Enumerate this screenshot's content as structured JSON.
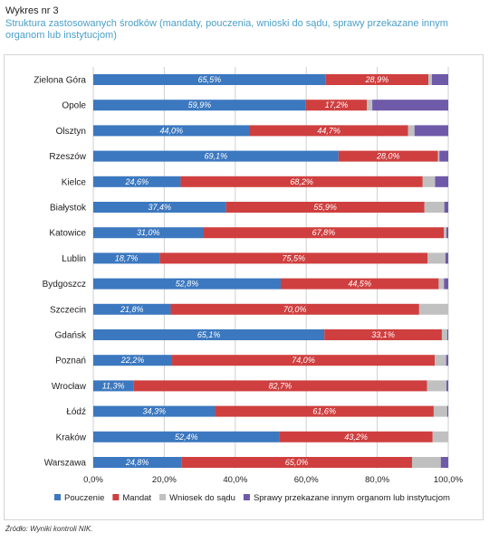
{
  "figure": {
    "label": "Wykres nr 3",
    "title": "Struktura zastosowanych środków (mandaty, pouczenia, wnioski do sądu, sprawy przekazane innym organom lub instytucjom)",
    "source": "Źródło: Wyniki kontroli NIK."
  },
  "colors": {
    "pouczenie": "#3c78bf",
    "mandat": "#cf3f3f",
    "wniosek": "#c0c0c0",
    "sprawy": "#6e5aa8",
    "grid": "#cfcfcf"
  },
  "chart_data": {
    "type": "bar",
    "orientation": "horizontal",
    "stacked": true,
    "categories": [
      "Zielona Góra",
      "Opole",
      "Olsztyn",
      "Rzeszów",
      "Kielce",
      "Białystok",
      "Katowice",
      "Lublin",
      "Bydgoszcz",
      "Szczecin",
      "Gdańsk",
      "Poznań",
      "Wrocław",
      "Łódź",
      "Kraków",
      "Warszawa"
    ],
    "series": [
      {
        "name": "Pouczenie",
        "values": [
          65.5,
          59.9,
          44.0,
          69.1,
          24.6,
          37.4,
          31.0,
          18.7,
          52.8,
          21.8,
          65.1,
          22.2,
          11.3,
          34.3,
          52.4,
          24.8
        ]
      },
      {
        "name": "Mandat",
        "values": [
          28.9,
          17.2,
          44.7,
          28.0,
          68.2,
          55.9,
          67.8,
          75.5,
          44.5,
          70.0,
          33.1,
          74.0,
          82.7,
          61.6,
          43.2,
          65.0
        ]
      },
      {
        "name": "Wniosek do sądu",
        "values": [
          1.0,
          1.5,
          1.8,
          0.4,
          3.5,
          5.6,
          0.7,
          5.0,
          1.5,
          8.2,
          1.5,
          3.2,
          5.5,
          3.8,
          4.4,
          8.1
        ]
      },
      {
        "name": "Sprawy przekazane innym organom lub instytucjom",
        "values": [
          4.6,
          21.4,
          9.5,
          2.5,
          3.7,
          1.1,
          0.5,
          0.8,
          1.2,
          0.0,
          0.3,
          0.6,
          0.5,
          0.3,
          0.0,
          2.1
        ]
      }
    ],
    "labels": [
      [
        "65,5%",
        "28,9%"
      ],
      [
        "59,9%",
        "17,2%"
      ],
      [
        "44,0%",
        "44,7%"
      ],
      [
        "69,1%",
        "28,0%"
      ],
      [
        "24,6%",
        "68,2%"
      ],
      [
        "37,4%",
        "55,9%"
      ],
      [
        "31,0%",
        "67,8%"
      ],
      [
        "18,7%",
        "75,5%"
      ],
      [
        "52,8%",
        "44,5%"
      ],
      [
        "21,8%",
        "70,0%"
      ],
      [
        "65,1%",
        "33,1%"
      ],
      [
        "22,2%",
        "74,0%"
      ],
      [
        "11,3%",
        "82,7%"
      ],
      [
        "34,3%",
        "61,6%"
      ],
      [
        "52,4%",
        "43,2%"
      ],
      [
        "24,8%",
        "65,0%"
      ]
    ],
    "xlim": [
      0,
      100
    ],
    "xticks": [
      "0,0%",
      "20,0%",
      "40,0%",
      "60,0%",
      "80,0%",
      "100,0%"
    ],
    "grid": true,
    "legend": "bottom"
  }
}
